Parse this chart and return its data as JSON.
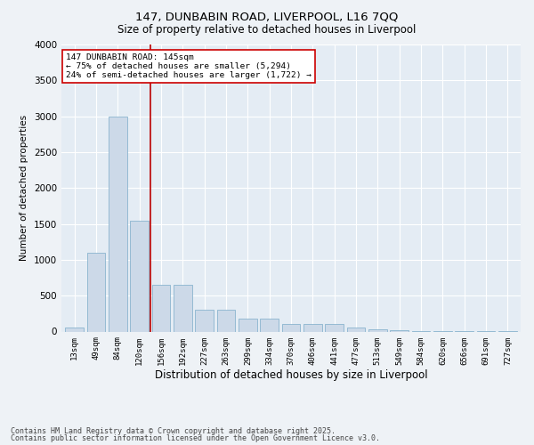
{
  "title1": "147, DUNBABIN ROAD, LIVERPOOL, L16 7QQ",
  "title2": "Size of property relative to detached houses in Liverpool",
  "xlabel": "Distribution of detached houses by size in Liverpool",
  "ylabel": "Number of detached properties",
  "categories": [
    "13sqm",
    "49sqm",
    "84sqm",
    "120sqm",
    "156sqm",
    "192sqm",
    "227sqm",
    "263sqm",
    "299sqm",
    "334sqm",
    "370sqm",
    "406sqm",
    "441sqm",
    "477sqm",
    "513sqm",
    "549sqm",
    "584sqm",
    "620sqm",
    "656sqm",
    "691sqm",
    "727sqm"
  ],
  "values": [
    50,
    1100,
    3000,
    1550,
    650,
    650,
    300,
    300,
    175,
    175,
    100,
    100,
    100,
    50,
    30,
    20,
    10,
    5,
    3,
    2,
    1
  ],
  "bar_color": "#ccd9e8",
  "bar_edge_color": "#7aaac8",
  "vline_color": "#bb0000",
  "vline_x_index": 4,
  "ylim": [
    0,
    4000
  ],
  "yticks": [
    0,
    500,
    1000,
    1500,
    2000,
    2500,
    3000,
    3500,
    4000
  ],
  "annotation_title": "147 DUNBABIN ROAD: 145sqm",
  "annotation_line1": "← 75% of detached houses are smaller (5,294)",
  "annotation_line2": "24% of semi-detached houses are larger (1,722) →",
  "annotation_box_color": "#ffffff",
  "annotation_box_edge": "#cc0000",
  "footer1": "Contains HM Land Registry data © Crown copyright and database right 2025.",
  "footer2": "Contains public sector information licensed under the Open Government Licence v3.0.",
  "bg_color": "#eef2f6",
  "plot_bg_color": "#e4ecf4"
}
